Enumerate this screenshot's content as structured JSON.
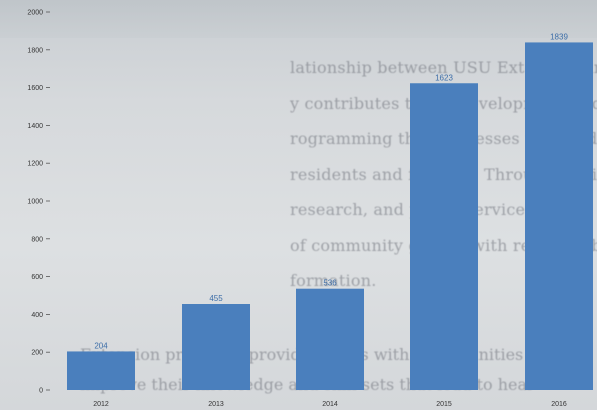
{
  "background_text": {
    "lines": [
      "lationship between USU Extension and Sanpete",
      "y contributes to the development of quality educa",
      "rogramming that addresses the needs of Sanpete Coun",
      "residents and families. Through the integration of tea",
      "research, and public service, we are able to respond t",
      "of community groups with research-based, unbias",
      "formation."
    ],
    "lower_lines": [
      "Extension programs provide clients with opportunities",
      "improve their knowledge and skill sets that lead to heal"
    ]
  },
  "colors": {
    "bar": "#4a7fbd",
    "value_label": "#3d6ea8",
    "axis_label": "#333333"
  },
  "chart_data": {
    "type": "bar",
    "categories": [
      "2012",
      "2013",
      "2014",
      "2015",
      "2016"
    ],
    "values": [
      204,
      455,
      536,
      1623,
      1839
    ],
    "data_labels": [
      "204",
      "455",
      "536",
      "1623",
      "1839"
    ],
    "y_ticks": [
      "0",
      "200",
      "400",
      "600",
      "800",
      "1000",
      "1200",
      "1400",
      "1600",
      "1800",
      "2000"
    ],
    "ylim": [
      0,
      2000
    ],
    "title": "",
    "xlabel": "",
    "ylabel": "",
    "grid": false
  }
}
